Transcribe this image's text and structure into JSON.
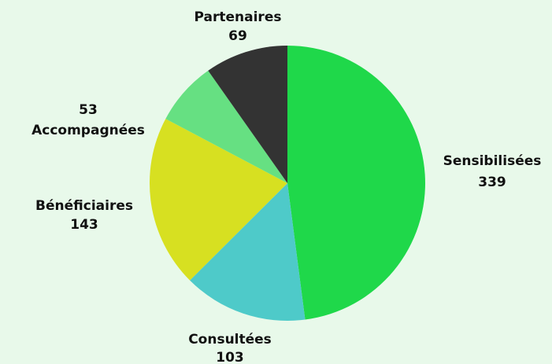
{
  "chart_data": {
    "type": "pie",
    "categories": [
      "Sensibilisées",
      "Consultées",
      "Bénéficiaires",
      "Accompagnées",
      "Partenaires"
    ],
    "values": [
      339,
      103,
      143,
      53,
      69
    ],
    "colors": [
      "#1fd84a",
      "#4ecac9",
      "#d7e021",
      "#66e082",
      "#333333"
    ]
  }
}
